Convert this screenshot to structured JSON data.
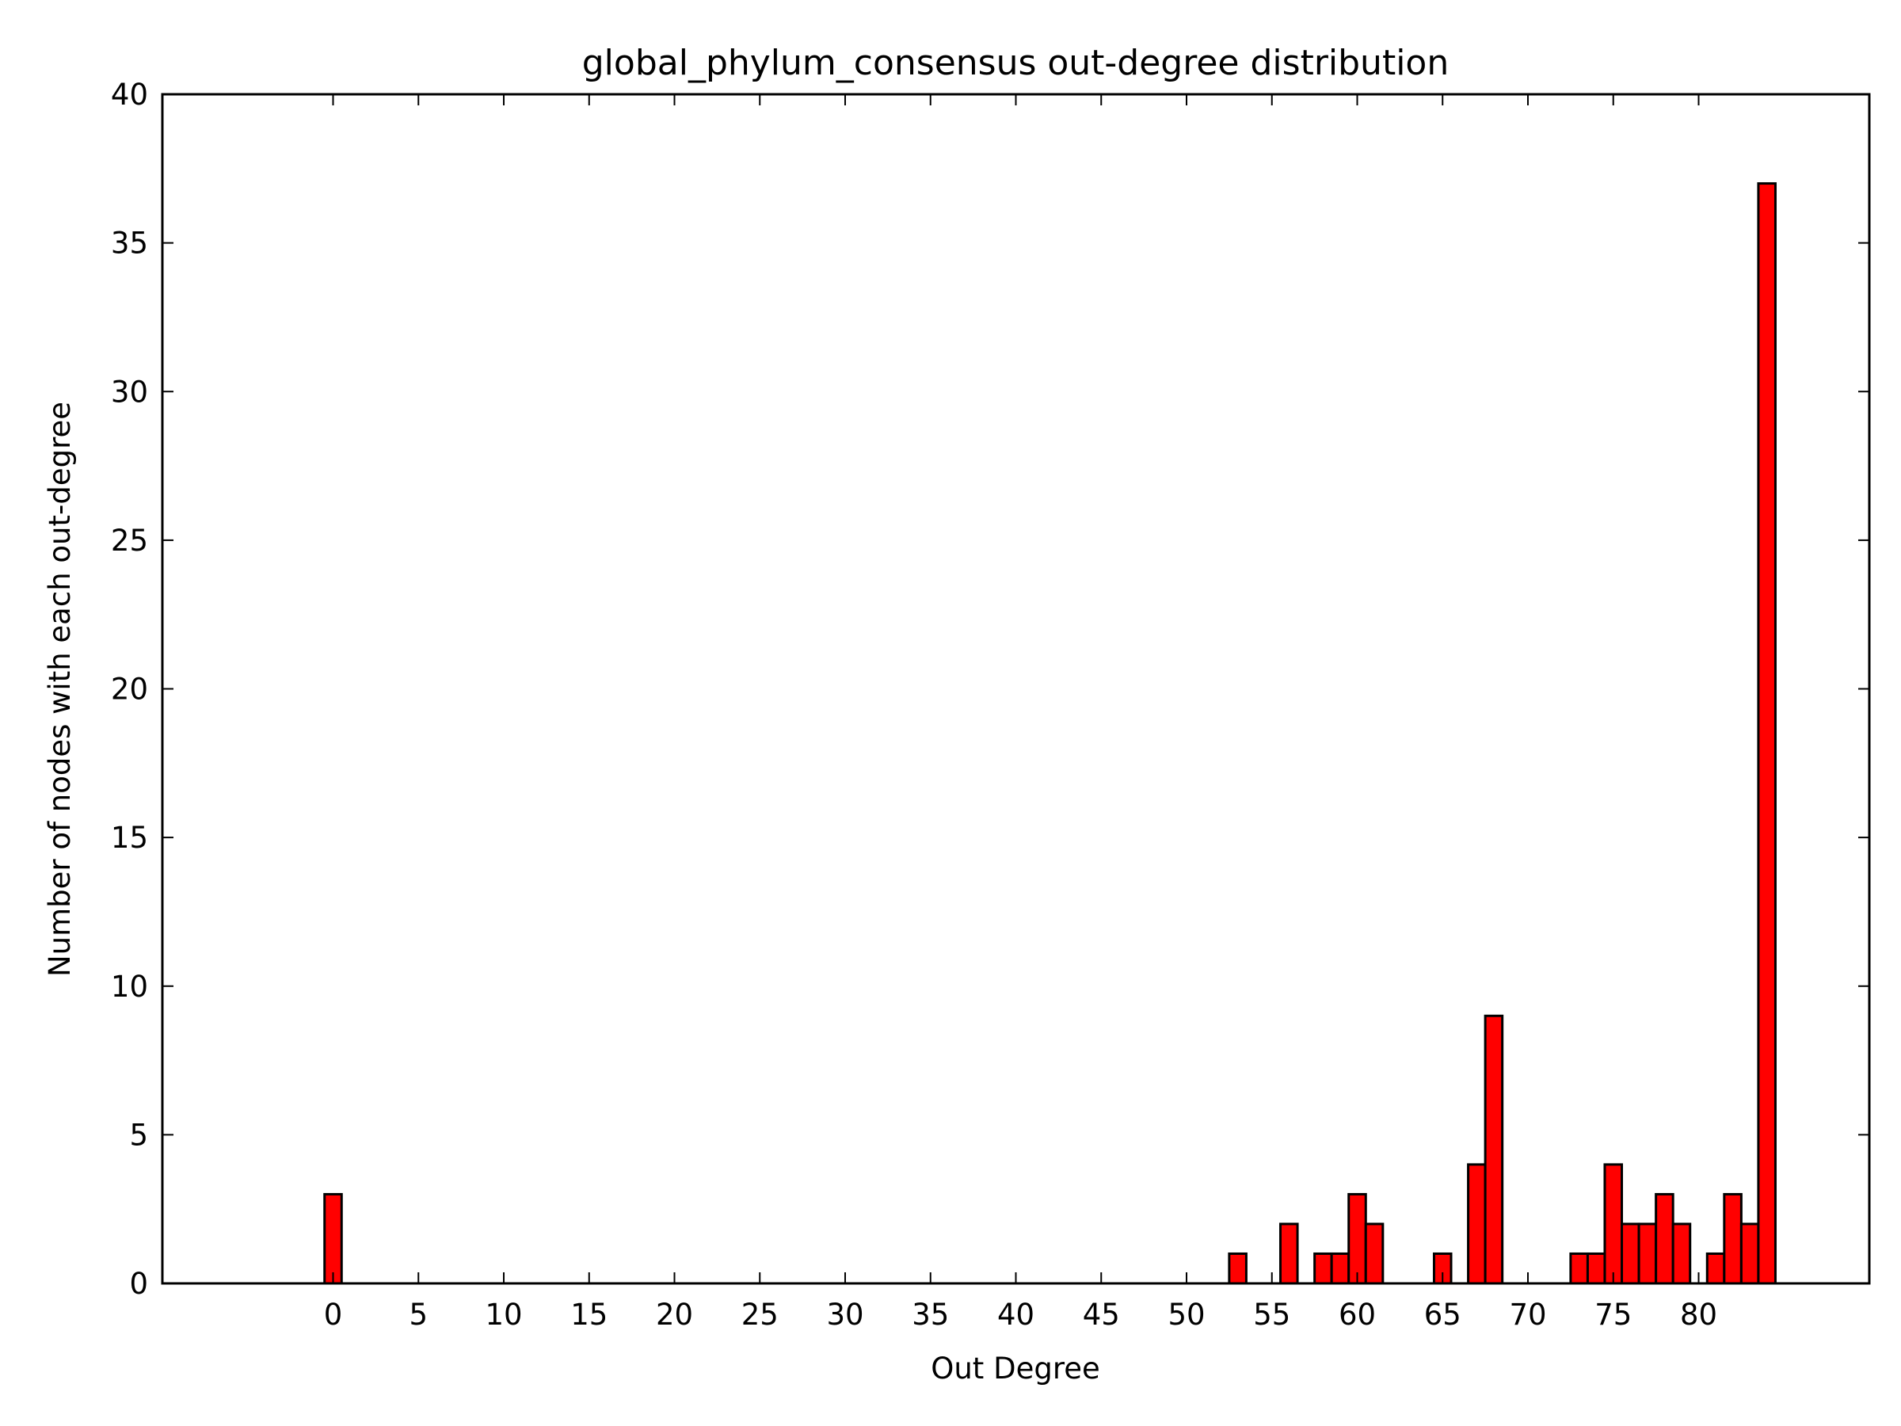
{
  "chart_data": {
    "type": "bar",
    "title": "global_phylum_consensus out-degree distribution",
    "xlabel": "Out Degree",
    "ylabel": "Number of nodes with each out-degree",
    "xlim": [
      -10,
      90
    ],
    "ylim": [
      0,
      40
    ],
    "x_ticks": [
      0,
      5,
      10,
      15,
      20,
      25,
      30,
      35,
      40,
      45,
      50,
      55,
      60,
      65,
      70,
      75,
      80
    ],
    "y_ticks": [
      0,
      5,
      10,
      15,
      20,
      25,
      30,
      35,
      40
    ],
    "grid": false,
    "bar_color": "#ff0000",
    "edge_color": "#000000",
    "bars": [
      {
        "x": 0,
        "value": 3
      },
      {
        "x": 53,
        "value": 1
      },
      {
        "x": 56,
        "value": 2
      },
      {
        "x": 58,
        "value": 1
      },
      {
        "x": 59,
        "value": 1
      },
      {
        "x": 60,
        "value": 3
      },
      {
        "x": 61,
        "value": 2
      },
      {
        "x": 65,
        "value": 1
      },
      {
        "x": 67,
        "value": 4
      },
      {
        "x": 68,
        "value": 9
      },
      {
        "x": 73,
        "value": 1
      },
      {
        "x": 74,
        "value": 1
      },
      {
        "x": 75,
        "value": 4
      },
      {
        "x": 76,
        "value": 2
      },
      {
        "x": 77,
        "value": 2
      },
      {
        "x": 78,
        "value": 3
      },
      {
        "x": 79,
        "value": 2
      },
      {
        "x": 81,
        "value": 1
      },
      {
        "x": 82,
        "value": 3
      },
      {
        "x": 83,
        "value": 2
      },
      {
        "x": 84,
        "value": 37
      }
    ]
  }
}
